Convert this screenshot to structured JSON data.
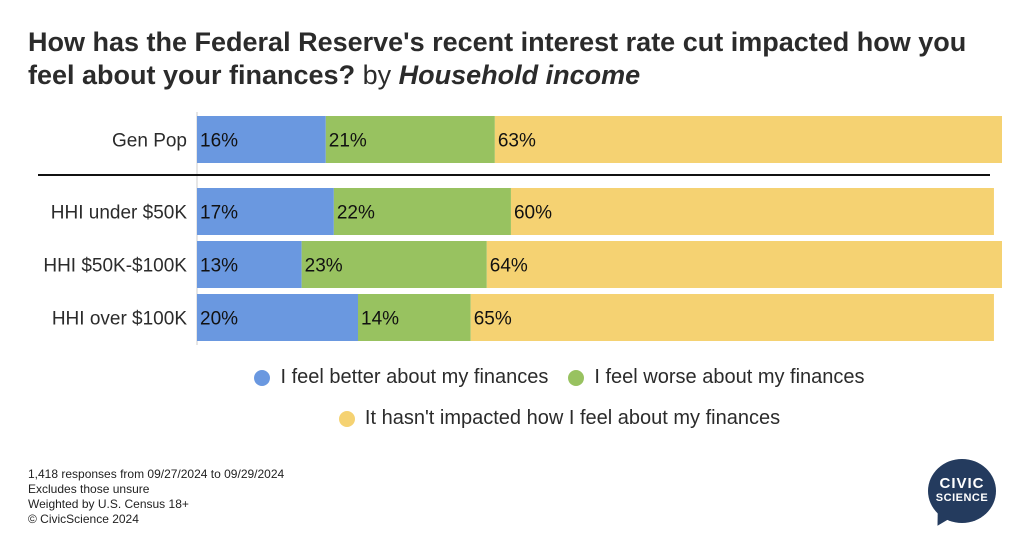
{
  "title": {
    "main": "How has the Federal Reserve's recent interest rate cut impacted how you feel about your finances?",
    "by": "by",
    "dimension": "Household income"
  },
  "chart_data": {
    "type": "bar",
    "orientation": "horizontal",
    "stacked": true,
    "categories": [
      "Gen Pop",
      "HHI under $50K",
      "HHI $50K-$100K",
      "HHI over $100K"
    ],
    "series": [
      {
        "name": "I feel better about my finances",
        "values": [
          16,
          17,
          13,
          20
        ],
        "labels": [
          "16%",
          "17%",
          "13%",
          "20%"
        ],
        "color": "#6a98e0"
      },
      {
        "name": "I feel worse about my finances",
        "values": [
          21,
          22,
          23,
          14
        ],
        "labels": [
          "21%",
          "22%",
          "23%",
          "14%"
        ],
        "color": "#98c260"
      },
      {
        "name": "It hasn't impacted how I feel about my finances",
        "values": [
          63,
          60,
          64,
          65
        ],
        "labels": [
          "63%",
          "60%",
          "64%",
          "65%"
        ],
        "color": "#f5d272"
      }
    ],
    "xlim": [
      0,
      100
    ],
    "legend_position": "bottom",
    "grid": false
  },
  "footnotes": [
    "1,418 responses from 09/27/2024 to 09/29/2024",
    "Excludes those unsure",
    "Weighted by U.S. Census 18+",
    "© CivicScience 2024"
  ],
  "logo": {
    "line1": "CIVIC",
    "line2": "SCIENCE",
    "color": "#243b5e"
  }
}
